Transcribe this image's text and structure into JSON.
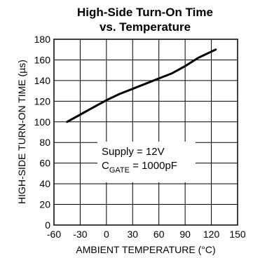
{
  "chart_data": {
    "type": "line",
    "title_line1": "High-Side Turn-On Time",
    "title_line2": "vs. Temperature",
    "ylabel_prefix": "HIGH-SIDE TURN-ON TIME (",
    "ylabel_unit": "µs",
    "ylabel_suffix": ")",
    "xlabel": "AMBIENT TEMPERATURE (°C)",
    "xlim": [
      -60,
      150
    ],
    "ylim": [
      0,
      180
    ],
    "x_ticks": [
      -60,
      -30,
      0,
      30,
      60,
      90,
      120,
      150
    ],
    "y_ticks": [
      0,
      20,
      40,
      60,
      80,
      100,
      120,
      140,
      160,
      180
    ],
    "grid": true,
    "annotation": {
      "line1": "Supply = 12V",
      "line2_main": "C",
      "line2_sub": "GATE",
      "line2_rest": " = 1000pF"
    },
    "series": [
      {
        "x": [
          -45,
          -30,
          -15,
          0,
          15,
          30,
          45,
          60,
          75,
          90,
          105,
          125
        ],
        "y": [
          100,
          107,
          114,
          121,
          127,
          132,
          137,
          142,
          147,
          154,
          162,
          170
        ]
      }
    ]
  }
}
